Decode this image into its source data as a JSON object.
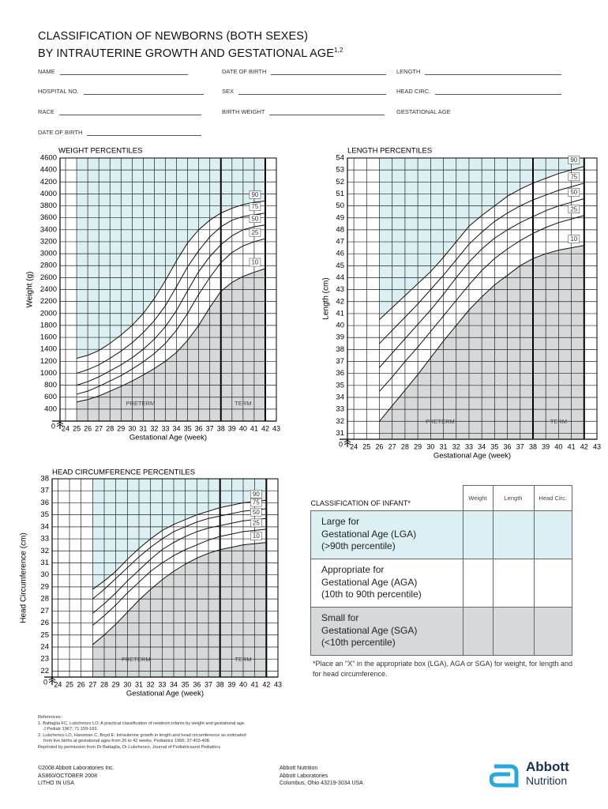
{
  "header": {
    "title_line1": "CLASSIFICATION OF NEWBORNS (BOTH SEXES)",
    "title_line2": "BY INTRAUTERINE GROWTH AND GESTATIONAL AGE",
    "superscript": "1,2"
  },
  "form_fields": [
    "NAME",
    "DATE OF BIRTH",
    "LENGTH",
    "HOSPITAL NO.",
    "SEX",
    "HEAD CIRC.",
    "RACE",
    "BIRTH WEIGHT",
    "GESTATIONAL AGE",
    "DATE OF BIRTH"
  ],
  "chart_data": [
    {
      "type": "line",
      "title": "WEIGHT PERCENTILES",
      "x_label": "Gestational Age (week)",
      "y_label": "Weight (g)",
      "x": [
        25,
        26,
        27,
        28,
        29,
        30,
        31,
        32,
        33,
        34,
        35,
        36,
        37,
        38,
        39,
        40,
        41,
        42
      ],
      "series": [
        {
          "name": "90",
          "color": "#111111",
          "values": [
            1250,
            1300,
            1380,
            1500,
            1640,
            1800,
            2000,
            2250,
            2550,
            2880,
            3180,
            3400,
            3560,
            3680,
            3760,
            3820,
            3860,
            3880
          ]
        },
        {
          "name": "75",
          "color": "#111111",
          "values": [
            1000,
            1060,
            1140,
            1250,
            1370,
            1510,
            1680,
            1880,
            2130,
            2450,
            2780,
            3050,
            3280,
            3450,
            3560,
            3620,
            3650,
            3680
          ]
        },
        {
          "name": "50",
          "color": "#111111",
          "values": [
            800,
            860,
            940,
            1040,
            1140,
            1260,
            1400,
            1570,
            1780,
            2050,
            2380,
            2700,
            2950,
            3150,
            3300,
            3400,
            3450,
            3480
          ]
        },
        {
          "name": "25",
          "color": "#111111",
          "values": [
            650,
            700,
            780,
            870,
            960,
            1070,
            1190,
            1330,
            1500,
            1720,
            2000,
            2320,
            2600,
            2850,
            3020,
            3130,
            3200,
            3250
          ]
        },
        {
          "name": "10",
          "color": "#111111",
          "values": [
            520,
            560,
            620,
            700,
            780,
            870,
            970,
            1080,
            1200,
            1350,
            1550,
            1800,
            2100,
            2370,
            2520,
            2620,
            2690,
            2750
          ]
        }
      ],
      "xlim": [
        23.5,
        43
      ],
      "xticks": [
        24,
        25,
        26,
        27,
        28,
        29,
        30,
        31,
        32,
        33,
        34,
        35,
        36,
        37,
        38,
        39,
        40,
        41,
        42,
        43
      ],
      "ylim": [
        200,
        4600
      ],
      "yticks": [
        400,
        600,
        800,
        1000,
        1200,
        1400,
        1600,
        1800,
        2000,
        2200,
        2400,
        2600,
        2800,
        3000,
        3200,
        3400,
        3600,
        3800,
        4000,
        4200,
        4400,
        4600
      ],
      "y_break_label": "0",
      "grid": true,
      "preterm_label": "PRETERM",
      "term_label": "TERM",
      "term_range": [
        38,
        42
      ],
      "shade_above_color": "#dcf0f4",
      "shade_below_color": "#d6d9da"
    },
    {
      "type": "line",
      "title": "LENGTH PERCENTILES",
      "x_label": "Gestational Age (week)",
      "y_label": "Length (cm)",
      "x": [
        26,
        27,
        28,
        29,
        30,
        31,
        32,
        33,
        34,
        35,
        36,
        37,
        38,
        39,
        40,
        41,
        42
      ],
      "series": [
        {
          "name": "90",
          "color": "#111111",
          "values": [
            40.5,
            41.5,
            42.5,
            43.5,
            44.5,
            45.7,
            47,
            48.3,
            49.2,
            50,
            50.8,
            51.4,
            51.9,
            52.3,
            52.7,
            53,
            53.3
          ]
        },
        {
          "name": "75",
          "color": "#111111",
          "values": [
            38.5,
            39.6,
            40.7,
            41.8,
            43,
            44.2,
            45.5,
            46.8,
            47.8,
            48.7,
            49.4,
            50,
            50.5,
            50.9,
            51.3,
            51.6,
            51.9
          ]
        },
        {
          "name": "50",
          "color": "#111111",
          "values": [
            36.5,
            37.7,
            38.9,
            40.1,
            41.3,
            42.6,
            44,
            45.3,
            46.4,
            47.3,
            48,
            48.6,
            49.1,
            49.6,
            50,
            50.3,
            50.6
          ]
        },
        {
          "name": "25",
          "color": "#111111",
          "values": [
            34.5,
            35.7,
            37,
            38.2,
            39.5,
            40.8,
            42.1,
            43.4,
            44.6,
            45.6,
            46.4,
            47.1,
            47.7,
            48.2,
            48.6,
            48.9,
            49.2
          ]
        },
        {
          "name": "10",
          "color": "#111111",
          "values": [
            32,
            33.3,
            34.6,
            35.9,
            37.3,
            38.7,
            40,
            41.3,
            42.4,
            43.4,
            44.2,
            45,
            45.6,
            46,
            46.3,
            46.5,
            46.7
          ]
        }
      ],
      "xlim": [
        23.5,
        43
      ],
      "xticks": [
        24,
        25,
        26,
        27,
        28,
        29,
        30,
        31,
        32,
        33,
        34,
        35,
        36,
        37,
        38,
        39,
        40,
        41,
        42,
        43
      ],
      "ylim": [
        30.5,
        54
      ],
      "yticks": [
        31,
        32,
        33,
        34,
        35,
        36,
        37,
        38,
        39,
        40,
        41,
        42,
        43,
        44,
        45,
        46,
        47,
        48,
        49,
        50,
        51,
        52,
        53,
        54
      ],
      "y_break_label": "0",
      "grid": true,
      "preterm_label": "PRETERM",
      "term_label": "TERM",
      "term_range": [
        38,
        42
      ],
      "shade_above_color": "#dcf0f4",
      "shade_below_color": "#d6d9da"
    },
    {
      "type": "line",
      "title": "HEAD CIRCUMFERENCE PERCENTILES",
      "x_label": "Gestational Age (week)",
      "y_label": "Head Circumference (cm)",
      "x": [
        27,
        28,
        29,
        30,
        31,
        32,
        33,
        34,
        35,
        36,
        37,
        38,
        39,
        40,
        41,
        42
      ],
      "series": [
        {
          "name": "90",
          "color": "#111111",
          "values": [
            28.8,
            29.5,
            30.3,
            31.3,
            32.2,
            33,
            33.7,
            34.2,
            34.6,
            35,
            35.3,
            35.6,
            35.8,
            36,
            36.1,
            36.2
          ]
        },
        {
          "name": "75",
          "color": "#111111",
          "values": [
            28,
            28.8,
            29.7,
            30.6,
            31.5,
            32.3,
            33,
            33.6,
            34,
            34.4,
            34.7,
            34.9,
            35.1,
            35.3,
            35.4,
            35.5
          ]
        },
        {
          "name": "50",
          "color": "#111111",
          "values": [
            26.8,
            27.6,
            28.5,
            29.5,
            30.4,
            31.3,
            32.1,
            32.7,
            33.2,
            33.6,
            33.9,
            34.1,
            34.3,
            34.5,
            34.6,
            34.7
          ]
        },
        {
          "name": "25",
          "color": "#111111",
          "values": [
            25.8,
            26.6,
            27.5,
            28.5,
            29.4,
            30.3,
            31,
            31.6,
            32.1,
            32.5,
            32.9,
            33.2,
            33.4,
            33.6,
            33.7,
            33.8
          ]
        },
        {
          "name": "10",
          "color": "#111111",
          "values": [
            24.2,
            25,
            25.9,
            26.9,
            27.9,
            28.8,
            29.6,
            30.3,
            30.9,
            31.4,
            31.8,
            32.1,
            32.3,
            32.5,
            32.6,
            32.7
          ]
        }
      ],
      "xlim": [
        23.5,
        43
      ],
      "xticks": [
        24,
        25,
        26,
        27,
        28,
        29,
        30,
        31,
        32,
        33,
        34,
        35,
        36,
        37,
        38,
        39,
        40,
        41,
        42,
        43
      ],
      "ylim": [
        21.5,
        38
      ],
      "yticks": [
        22,
        23,
        24,
        25,
        26,
        27,
        28,
        29,
        30,
        31,
        32,
        33,
        34,
        35,
        36,
        37,
        38
      ],
      "y_break_label": "0",
      "grid": true,
      "preterm_label": "PRETERM",
      "term_label": "TERM",
      "term_range": [
        38,
        42
      ],
      "shade_above_color": "#dcf0f4",
      "shade_below_color": "#d6d9da"
    }
  ],
  "classification": {
    "title": "CLASSIFICATION OF INFANT*",
    "columns": [
      "Weight",
      "Length",
      "Head Circ."
    ],
    "rows": [
      {
        "lines": [
          "Large for",
          "Gestational Age (LGA)",
          "(>90th percentile)"
        ],
        "color": "#dcf0f4"
      },
      {
        "lines": [
          "Appropriate for",
          "Gestational Age (AGA)",
          "(10th to 90th percentile)"
        ],
        "color": "#ffffff"
      },
      {
        "lines": [
          "Small for",
          "Gestational Age (SGA)",
          "(<10th percentile)"
        ],
        "color": "#d6d9da"
      }
    ],
    "note": "*Place an \"X\" in the appropriate box (LGA), AGA or SGA) for weight, for length and for head circumference."
  },
  "references": [
    "References:",
    "1. Battaglia FC, Lubchenco LO: A practical classification of newborn infants by weight and gestational age.",
    "J Pediatr 1967; 71:159-163.",
    "2. Lubchenco LO, Hansman C, Boyd E: Intrauterine growth in length and head circumference as estimated",
    "from live births at gestational ages from 26 to 42 weeks. Pediatrics 1966; 37:403-408.",
    "Reprinted by permission from Dr Battaglia, Dr Lubchenco, Journal of Pediatricsand Pediatrics"
  ],
  "footer": {
    "left": [
      "©2008 Abbott Laboratories Inc.",
      "AS860/OCTOBER 2008",
      "LITHO IN USA"
    ],
    "middle": [
      "Abbott Nutrition",
      "Abbott Laboratories",
      "Columbus, Ohio 43219-3034 USA"
    ],
    "logo_top": "Abbott",
    "logo_bottom": "Nutrition"
  }
}
